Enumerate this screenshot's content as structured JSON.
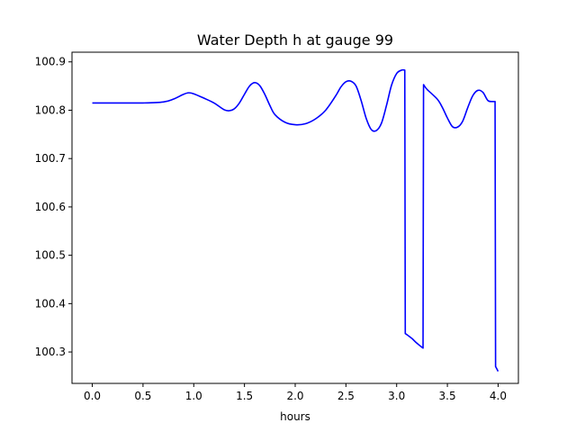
{
  "chart_data": {
    "type": "line",
    "title": "Water Depth h at gauge 99",
    "xlabel": "hours",
    "ylabel": "",
    "xlim": [
      -0.2,
      4.2
    ],
    "ylim": [
      100.235,
      100.92
    ],
    "xticks": [
      0.0,
      0.5,
      1.0,
      1.5,
      2.0,
      2.5,
      3.0,
      3.5,
      4.0
    ],
    "xtick_labels": [
      "0.0",
      "0.5",
      "1.0",
      "1.5",
      "2.0",
      "2.5",
      "3.0",
      "3.5",
      "4.0"
    ],
    "yticks": [
      100.3,
      100.4,
      100.5,
      100.6,
      100.7,
      100.8,
      100.9
    ],
    "ytick_labels": [
      "100.3",
      "100.4",
      "100.5",
      "100.6",
      "100.7",
      "100.8",
      "100.9"
    ],
    "grid": false,
    "series": [
      {
        "color": "#0000ff",
        "x": [
          0.0,
          0.3,
          0.5,
          0.7,
          0.8,
          0.9,
          0.95,
          1.0,
          1.1,
          1.2,
          1.3,
          1.35,
          1.4,
          1.45,
          1.5,
          1.55,
          1.6,
          1.65,
          1.7,
          1.75,
          1.8,
          1.9,
          2.0,
          2.1,
          2.2,
          2.3,
          2.4,
          2.45,
          2.5,
          2.55,
          2.6,
          2.65,
          2.7,
          2.75,
          2.8,
          2.85,
          2.9,
          2.95,
          3.0,
          3.05,
          3.08,
          3.085,
          3.1,
          3.15,
          3.2,
          3.26,
          3.265,
          3.3,
          3.4,
          3.45,
          3.5,
          3.55,
          3.6,
          3.65,
          3.7,
          3.75,
          3.8,
          3.85,
          3.9,
          3.95,
          3.97,
          3.975,
          4.0
        ],
        "y": [
          100.815,
          100.815,
          100.815,
          100.817,
          100.823,
          100.833,
          100.836,
          100.834,
          100.825,
          100.815,
          100.801,
          100.799,
          100.803,
          100.815,
          100.833,
          100.85,
          100.857,
          100.851,
          100.833,
          100.81,
          100.791,
          100.775,
          100.77,
          100.772,
          100.782,
          100.8,
          100.83,
          100.848,
          100.859,
          100.86,
          100.85,
          100.82,
          100.783,
          100.76,
          100.758,
          100.773,
          100.81,
          100.852,
          100.876,
          100.883,
          100.883,
          100.338,
          100.336,
          100.328,
          100.318,
          100.308,
          100.853,
          100.843,
          100.823,
          100.806,
          100.784,
          100.766,
          100.765,
          100.777,
          100.805,
          100.83,
          100.841,
          100.837,
          100.82,
          100.818,
          100.818,
          100.27,
          100.26
        ]
      }
    ]
  }
}
